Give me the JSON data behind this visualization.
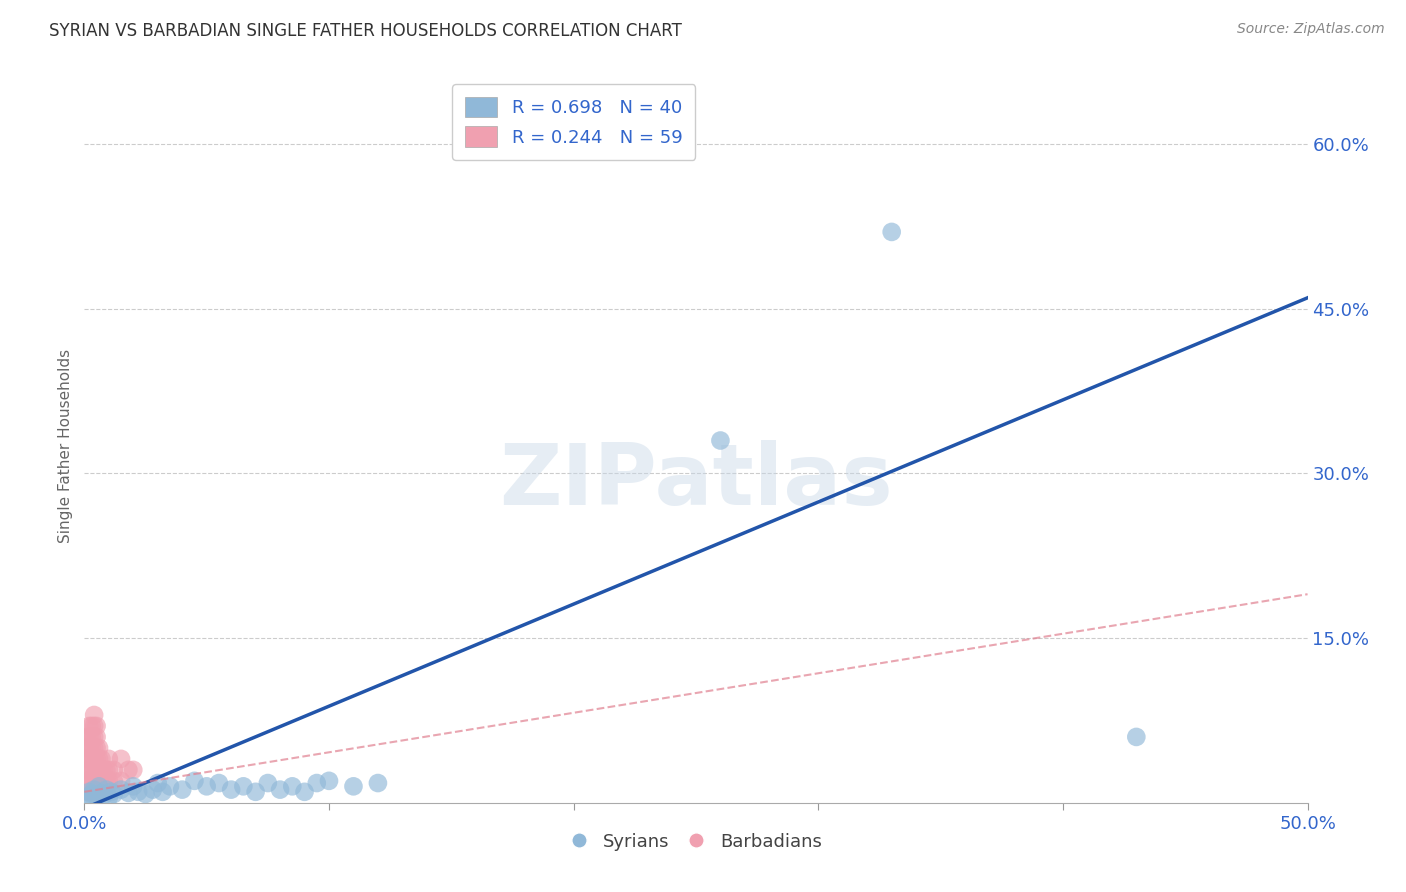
{
  "title": "SYRIAN VS BARBADIAN SINGLE FATHER HOUSEHOLDS CORRELATION CHART",
  "source": "Source: ZipAtlas.com",
  "ylabel": "Single Father Households",
  "xlim": [
    0.0,
    0.5
  ],
  "ylim": [
    0.0,
    0.65
  ],
  "xtick_positions": [
    0.0,
    0.1,
    0.2,
    0.3,
    0.4,
    0.5
  ],
  "xticklabels": [
    "0.0%",
    "",
    "",
    "",
    "",
    "50.0%"
  ],
  "ytick_positions": [
    0.15,
    0.3,
    0.45,
    0.6
  ],
  "ytick_labels": [
    "15.0%",
    "30.0%",
    "45.0%",
    "60.0%"
  ],
  "syrian_color": "#90b8d8",
  "barbadian_color": "#f0a0b0",
  "syrian_line_color": "#2255aa",
  "barbadian_line_color": "#e08090",
  "legend_R_syrian": "R = 0.698",
  "legend_N_syrian": "N = 40",
  "legend_R_barbadian": "R = 0.244",
  "legend_N_barbadian": "N = 59",
  "title_fontsize": 12,
  "source_fontsize": 10,
  "tick_label_color": "#3366CC",
  "watermark_text": "ZIPatlas",
  "syrian_scatter": [
    [
      0.001,
      0.005
    ],
    [
      0.002,
      0.01
    ],
    [
      0.003,
      0.008
    ],
    [
      0.004,
      0.012
    ],
    [
      0.005,
      0.006
    ],
    [
      0.006,
      0.015
    ],
    [
      0.007,
      0.009
    ],
    [
      0.008,
      0.007
    ],
    [
      0.009,
      0.012
    ],
    [
      0.01,
      0.005
    ],
    [
      0.011,
      0.01
    ],
    [
      0.012,
      0.008
    ],
    [
      0.015,
      0.012
    ],
    [
      0.018,
      0.009
    ],
    [
      0.02,
      0.015
    ],
    [
      0.022,
      0.01
    ],
    [
      0.025,
      0.008
    ],
    [
      0.028,
      0.012
    ],
    [
      0.03,
      0.018
    ],
    [
      0.032,
      0.01
    ],
    [
      0.035,
      0.015
    ],
    [
      0.04,
      0.012
    ],
    [
      0.045,
      0.02
    ],
    [
      0.05,
      0.015
    ],
    [
      0.055,
      0.018
    ],
    [
      0.06,
      0.012
    ],
    [
      0.065,
      0.015
    ],
    [
      0.07,
      0.01
    ],
    [
      0.075,
      0.018
    ],
    [
      0.08,
      0.012
    ],
    [
      0.085,
      0.015
    ],
    [
      0.09,
      0.01
    ],
    [
      0.095,
      0.018
    ],
    [
      0.1,
      0.02
    ],
    [
      0.11,
      0.015
    ],
    [
      0.12,
      0.018
    ],
    [
      0.26,
      0.33
    ],
    [
      0.33,
      0.52
    ],
    [
      0.43,
      0.06
    ],
    [
      0.001,
      0.002
    ]
  ],
  "barbadian_scatter": [
    [
      0.001,
      0.01
    ],
    [
      0.001,
      0.02
    ],
    [
      0.001,
      0.03
    ],
    [
      0.001,
      0.04
    ],
    [
      0.001,
      0.05
    ],
    [
      0.001,
      0.06
    ],
    [
      0.002,
      0.01
    ],
    [
      0.002,
      0.02
    ],
    [
      0.002,
      0.03
    ],
    [
      0.002,
      0.04
    ],
    [
      0.002,
      0.05
    ],
    [
      0.002,
      0.06
    ],
    [
      0.002,
      0.07
    ],
    [
      0.003,
      0.01
    ],
    [
      0.003,
      0.02
    ],
    [
      0.003,
      0.03
    ],
    [
      0.003,
      0.04
    ],
    [
      0.003,
      0.05
    ],
    [
      0.003,
      0.06
    ],
    [
      0.003,
      0.07
    ],
    [
      0.004,
      0.01
    ],
    [
      0.004,
      0.02
    ],
    [
      0.004,
      0.03
    ],
    [
      0.004,
      0.04
    ],
    [
      0.004,
      0.05
    ],
    [
      0.004,
      0.06
    ],
    [
      0.004,
      0.07
    ],
    [
      0.004,
      0.08
    ],
    [
      0.005,
      0.01
    ],
    [
      0.005,
      0.02
    ],
    [
      0.005,
      0.03
    ],
    [
      0.005,
      0.04
    ],
    [
      0.005,
      0.05
    ],
    [
      0.005,
      0.06
    ],
    [
      0.005,
      0.07
    ],
    [
      0.006,
      0.01
    ],
    [
      0.006,
      0.02
    ],
    [
      0.006,
      0.03
    ],
    [
      0.006,
      0.04
    ],
    [
      0.006,
      0.05
    ],
    [
      0.007,
      0.01
    ],
    [
      0.007,
      0.02
    ],
    [
      0.007,
      0.03
    ],
    [
      0.007,
      0.04
    ],
    [
      0.008,
      0.01
    ],
    [
      0.008,
      0.02
    ],
    [
      0.008,
      0.03
    ],
    [
      0.009,
      0.01
    ],
    [
      0.009,
      0.02
    ],
    [
      0.009,
      0.03
    ],
    [
      0.01,
      0.02
    ],
    [
      0.01,
      0.03
    ],
    [
      0.01,
      0.04
    ],
    [
      0.012,
      0.02
    ],
    [
      0.012,
      0.03
    ],
    [
      0.015,
      0.02
    ],
    [
      0.015,
      0.04
    ],
    [
      0.018,
      0.03
    ],
    [
      0.02,
      0.03
    ]
  ],
  "syrian_line": [
    [
      0.0,
      -0.005
    ],
    [
      0.5,
      0.46
    ]
  ],
  "barbadian_line": [
    [
      0.0,
      0.01
    ],
    [
      0.5,
      0.19
    ]
  ]
}
